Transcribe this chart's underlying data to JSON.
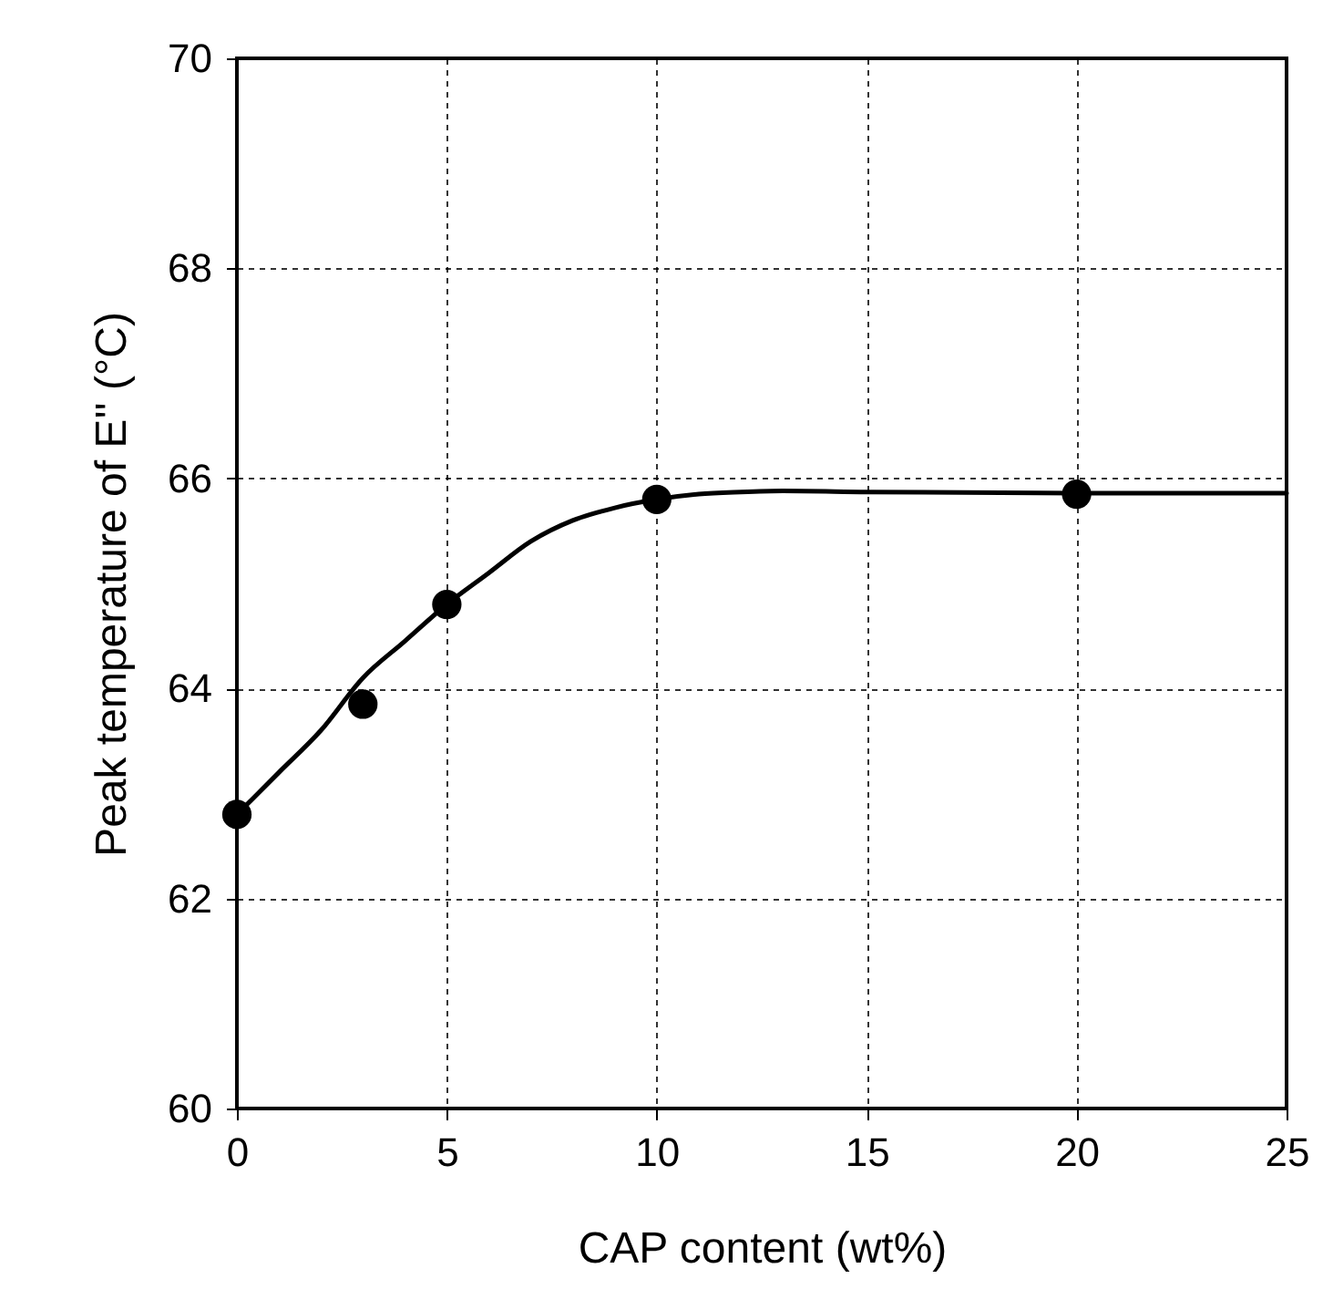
{
  "chart_data": {
    "type": "scatter",
    "xlabel": "CAP content (wt%)",
    "ylabel": "Peak temperature of E'' (°C)",
    "xlim": [
      0,
      25
    ],
    "xticks": [
      0,
      5,
      10,
      15,
      20,
      25
    ],
    "ylim": [
      60,
      70
    ],
    "yticks": [
      60,
      62,
      64,
      66,
      68,
      70
    ],
    "grid": true,
    "marker": "circle",
    "series": [
      {
        "type": "line",
        "color": "#000000",
        "line_style": "solid",
        "marker": "none",
        "x": [
          0,
          1,
          2,
          3,
          4,
          5,
          6,
          7,
          8,
          9,
          10,
          11,
          12,
          13,
          15,
          20,
          25
        ],
        "values": [
          62.8,
          63.2,
          63.6,
          64.1,
          64.45,
          64.8,
          65.1,
          65.4,
          65.6,
          65.72,
          65.8,
          65.85,
          65.87,
          65.88,
          65.87,
          65.86,
          65.86
        ]
      },
      {
        "color": "#000000",
        "x": [
          0,
          3,
          5,
          10,
          20
        ],
        "values": [
          62.8,
          63.85,
          64.8,
          65.8,
          65.85
        ]
      }
    ]
  }
}
